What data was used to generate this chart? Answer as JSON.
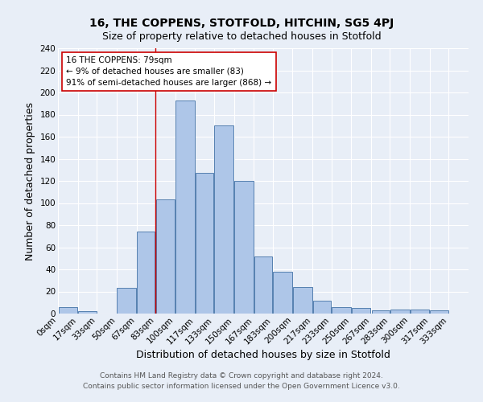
{
  "title": "16, THE COPPENS, STOTFOLD, HITCHIN, SG5 4PJ",
  "subtitle": "Size of property relative to detached houses in Stotfold",
  "xlabel": "Distribution of detached houses by size in Stotfold",
  "ylabel": "Number of detached properties",
  "footnote1": "Contains HM Land Registry data © Crown copyright and database right 2024.",
  "footnote2": "Contains public sector information licensed under the Open Government Licence v3.0.",
  "bin_labels": [
    "0sqm",
    "17sqm",
    "33sqm",
    "50sqm",
    "67sqm",
    "83sqm",
    "100sqm",
    "117sqm",
    "133sqm",
    "150sqm",
    "167sqm",
    "183sqm",
    "200sqm",
    "217sqm",
    "233sqm",
    "250sqm",
    "267sqm",
    "283sqm",
    "300sqm",
    "317sqm",
    "333sqm"
  ],
  "bar_values": [
    6,
    2,
    0,
    23,
    74,
    103,
    193,
    127,
    170,
    120,
    52,
    38,
    24,
    12,
    6,
    5,
    3,
    4,
    4,
    3,
    0
  ],
  "bin_edges": [
    0,
    17,
    33,
    50,
    67,
    83,
    100,
    117,
    133,
    150,
    167,
    183,
    200,
    217,
    233,
    250,
    267,
    283,
    300,
    317,
    333,
    350
  ],
  "bar_color": "#aec6e8",
  "bar_edge_color": "#5580b0",
  "vline_x": 83,
  "vline_color": "#cc0000",
  "annotation_text": "16 THE COPPENS: 79sqm\n← 9% of detached houses are smaller (83)\n91% of semi-detached houses are larger (868) →",
  "annotation_box_color": "#ffffff",
  "annotation_box_edge": "#cc0000",
  "ylim": [
    0,
    240
  ],
  "yticks": [
    0,
    20,
    40,
    60,
    80,
    100,
    120,
    140,
    160,
    180,
    200,
    220,
    240
  ],
  "background_color": "#e8eef7",
  "grid_color": "#ffffff",
  "title_fontsize": 10,
  "subtitle_fontsize": 9,
  "xlabel_fontsize": 9,
  "ylabel_fontsize": 9,
  "tick_fontsize": 7.5,
  "footnote_fontsize": 6.5
}
